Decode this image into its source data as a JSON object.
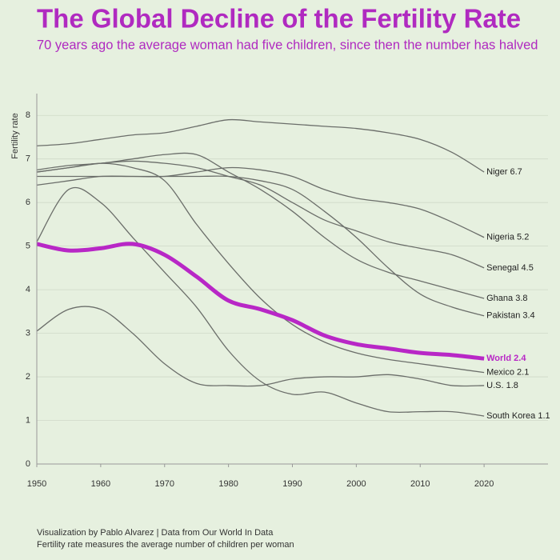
{
  "chart_data": {
    "type": "line",
    "title": "The Global Decline of the Fertility Rate",
    "subtitle": "70 years ago the average woman had five children, since then the number has halved",
    "y_label": "Fertility rate",
    "source": "Visualization by Pablo Alvarez | Data from Our World In Data",
    "note": "Fertility rate measures the average number of children per woman",
    "x": [
      1950,
      1955,
      1960,
      1965,
      1970,
      1975,
      1980,
      1985,
      1990,
      1995,
      2000,
      2005,
      2010,
      2015,
      2020
    ],
    "xlim": [
      1950,
      2030
    ],
    "xticks": [
      1950,
      1960,
      1970,
      1980,
      1990,
      2000,
      2010,
      2020
    ],
    "ylim": [
      0,
      8.5
    ],
    "yticks": [
      0,
      1,
      2,
      3,
      4,
      5,
      6,
      7,
      8
    ],
    "grid": true,
    "series": [
      {
        "name": "Niger 6.7",
        "color": "#6b6e6a",
        "values": [
          7.3,
          7.35,
          7.45,
          7.55,
          7.6,
          7.75,
          7.9,
          7.85,
          7.8,
          7.75,
          7.7,
          7.6,
          7.45,
          7.15,
          6.7
        ]
      },
      {
        "name": "Nigeria 5.2",
        "color": "#6b6e6a",
        "values": [
          6.4,
          6.5,
          6.6,
          6.6,
          6.6,
          6.7,
          6.8,
          6.75,
          6.6,
          6.3,
          6.1,
          6.0,
          5.85,
          5.55,
          5.2
        ]
      },
      {
        "name": "Senegal 4.5",
        "color": "#6b6e6a",
        "values": [
          6.7,
          6.8,
          6.9,
          6.95,
          6.9,
          6.8,
          6.6,
          6.4,
          6.0,
          5.6,
          5.35,
          5.1,
          4.95,
          4.8,
          4.5
        ]
      },
      {
        "name": "Ghana 3.8",
        "color": "#6b6e6a",
        "values": [
          6.75,
          6.85,
          6.9,
          7.0,
          7.1,
          7.1,
          6.7,
          6.3,
          5.8,
          5.2,
          4.7,
          4.4,
          4.2,
          4.0,
          3.8
        ]
      },
      {
        "name": "Pakistan 3.4",
        "color": "#6b6e6a",
        "values": [
          6.6,
          6.6,
          6.6,
          6.6,
          6.6,
          6.6,
          6.6,
          6.5,
          6.3,
          5.8,
          5.2,
          4.5,
          3.9,
          3.6,
          3.4
        ]
      },
      {
        "name": "Mexico 2.1",
        "color": "#6b6e6a",
        "values": [
          6.7,
          6.8,
          6.9,
          6.8,
          6.5,
          5.5,
          4.6,
          3.8,
          3.2,
          2.8,
          2.55,
          2.4,
          2.3,
          2.2,
          2.1
        ]
      },
      {
        "name": "U.S. 1.8",
        "color": "#6b6e6a",
        "values": [
          3.05,
          3.55,
          3.55,
          3.0,
          2.3,
          1.85,
          1.8,
          1.8,
          1.95,
          2.0,
          2.0,
          2.05,
          1.95,
          1.8,
          1.8
        ]
      },
      {
        "name": "South Korea 1.1",
        "color": "#6b6e6a",
        "values": [
          5.1,
          6.3,
          6.0,
          5.2,
          4.4,
          3.6,
          2.6,
          1.9,
          1.6,
          1.65,
          1.4,
          1.2,
          1.2,
          1.2,
          1.1
        ]
      },
      {
        "name": "World 2.4",
        "color": "#b827c6",
        "highlight": true,
        "values": [
          5.05,
          4.9,
          4.95,
          5.05,
          4.8,
          4.3,
          3.75,
          3.55,
          3.3,
          2.95,
          2.75,
          2.65,
          2.55,
          2.5,
          2.42
        ]
      }
    ]
  }
}
